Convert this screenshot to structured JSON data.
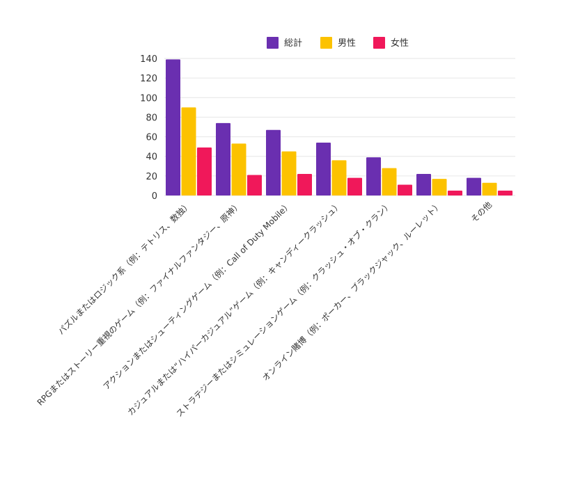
{
  "chart_data": {
    "type": "bar",
    "title": "",
    "xlabel": "",
    "ylabel": "",
    "ylim": [
      0,
      140
    ],
    "yticks": [
      0,
      20,
      40,
      60,
      80,
      100,
      120,
      140
    ],
    "grid": true,
    "legend_position": "top",
    "categories": [
      "パズルまたはロジック系（例：テトリス、数独）",
      "RPGまたはストーリー重視のゲーム（例：ファイナルファンタジー、原神）",
      "アクションまたはシューティングゲーム（例：Call of Duty Mobile）",
      "カジュアルまたは“ハイパーカジュアル”ゲーム（例：キャンディークラッシュ）",
      "ストラテジーまたはシミュレーションゲーム（例：クラッシュ・オブ・クラン）",
      "オンライン賭博（例：ポーカー、ブラックジャック、ルーレット）",
      "その他"
    ],
    "series": [
      {
        "name": "総計",
        "color": "#6a2fb0",
        "values": [
          139,
          74,
          67,
          54,
          39,
          22,
          18
        ]
      },
      {
        "name": "男性",
        "color": "#fcc200",
        "values": [
          90,
          53,
          45,
          36,
          28,
          17,
          13
        ]
      },
      {
        "name": "女性",
        "color": "#f0185a",
        "values": [
          49,
          21,
          22,
          18,
          11,
          5,
          5
        ]
      }
    ]
  }
}
